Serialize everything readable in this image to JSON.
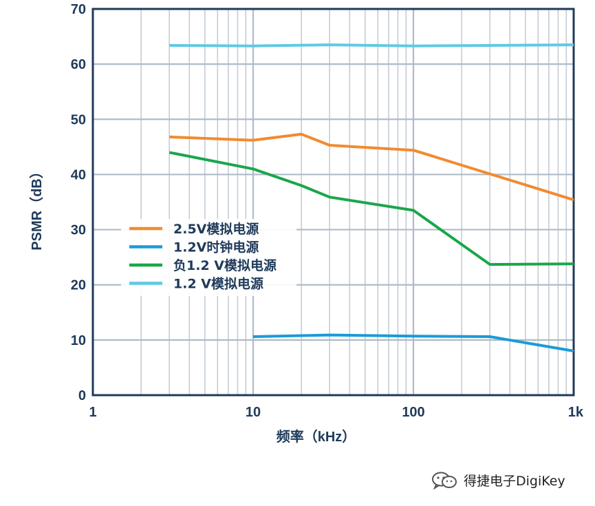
{
  "chart_data": {
    "type": "line",
    "xlabel": "频率（kHz）",
    "ylabel": "PSMR（dB）",
    "x_scale": "log",
    "xlim": [
      1,
      1000
    ],
    "ylim": [
      0,
      70
    ],
    "x_ticks": [
      1,
      10,
      100,
      1000
    ],
    "x_tick_labels": [
      "1",
      "10",
      "100",
      "1k"
    ],
    "y_ticks": [
      0,
      10,
      20,
      30,
      40,
      50,
      60,
      70
    ],
    "y_tick_labels": [
      "0",
      "10",
      "20",
      "30",
      "40",
      "50",
      "60",
      "70"
    ],
    "grid": true,
    "legend_position": "center-left",
    "series": [
      {
        "name": "2.5V模拟电源",
        "color": "#f28a30",
        "points": [
          [
            3,
            46.8
          ],
          [
            10,
            46.2
          ],
          [
            20,
            47.3
          ],
          [
            30,
            45.3
          ],
          [
            100,
            44.4
          ],
          [
            300,
            40.1
          ],
          [
            1000,
            35.4
          ]
        ]
      },
      {
        "name": "1.2V时钟电源",
        "color": "#1b9bd7",
        "points": [
          [
            10,
            10.6
          ],
          [
            30,
            10.9
          ],
          [
            100,
            10.7
          ],
          [
            300,
            10.6
          ],
          [
            1000,
            8.0
          ]
        ]
      },
      {
        "name": "负1.2 V模拟电源",
        "color": "#1aa64a",
        "points": [
          [
            3,
            44.0
          ],
          [
            10,
            41.0
          ],
          [
            20,
            38.0
          ],
          [
            30,
            35.9
          ],
          [
            100,
            33.5
          ],
          [
            300,
            23.7
          ],
          [
            1000,
            23.8
          ]
        ]
      },
      {
        "name": "1.2 V模拟电源",
        "color": "#5fc9e4",
        "points": [
          [
            3,
            63.4
          ],
          [
            10,
            63.3
          ],
          [
            30,
            63.5
          ],
          [
            100,
            63.3
          ],
          [
            1000,
            63.5
          ]
        ]
      }
    ]
  },
  "watermark": {
    "text": "得捷电子DigiKey",
    "icon": "wechat-icon"
  }
}
